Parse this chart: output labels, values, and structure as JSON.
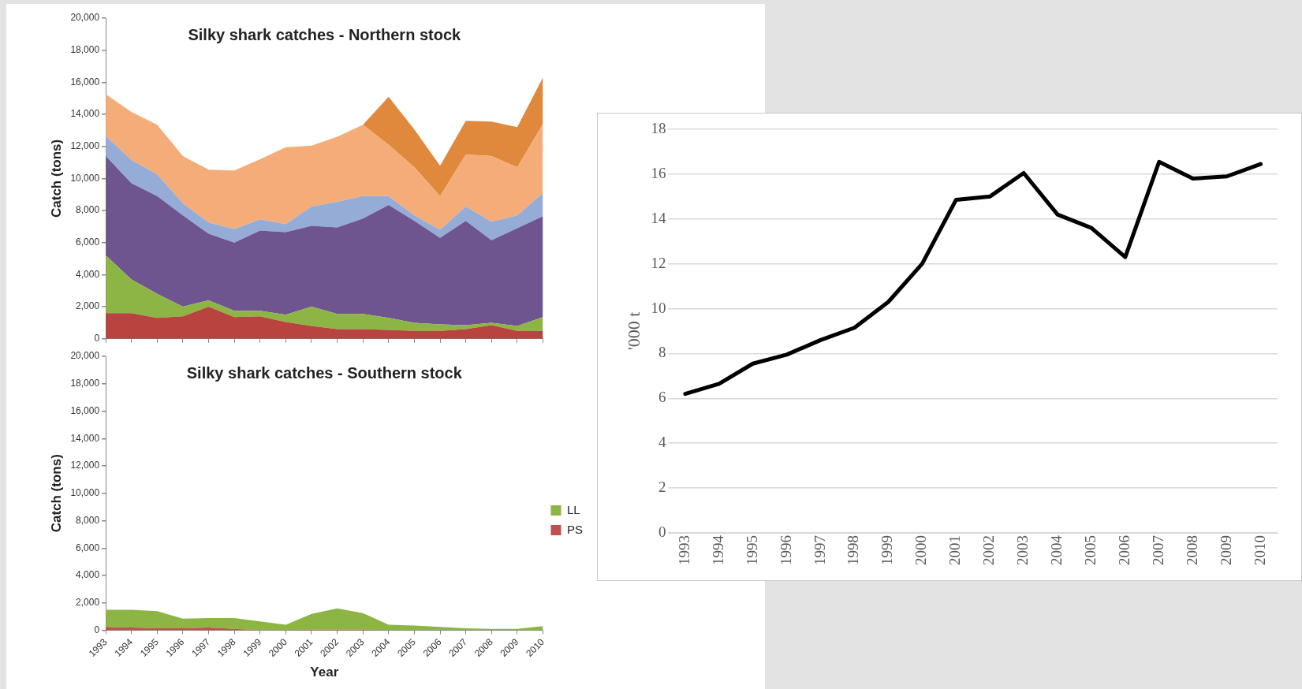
{
  "chart_data": [
    {
      "type": "area",
      "title": "Silky shark catches - Northern stock",
      "ylabel": "Catch (tons)",
      "stacked": true,
      "grid": false,
      "tick_labels": "y",
      "categories": [
        "1993",
        "1994",
        "1995",
        "1996",
        "1997",
        "1998",
        "1999",
        "2000",
        "2001",
        "2002",
        "2003",
        "2004",
        "2005",
        "2006",
        "2007",
        "2008",
        "2009",
        "2010"
      ],
      "ylim": [
        0,
        20000
      ],
      "yticks": [
        {
          "value": 0,
          "label": "0"
        },
        {
          "value": 2000,
          "label": "2,000"
        },
        {
          "value": 4000,
          "label": "4,000"
        },
        {
          "value": 6000,
          "label": "6,000"
        },
        {
          "value": 8000,
          "label": "8,000"
        },
        {
          "value": 10000,
          "label": "10,000"
        },
        {
          "value": 12000,
          "label": "12,000"
        },
        {
          "value": 14000,
          "label": "14,000"
        },
        {
          "value": 16000,
          "label": "16,000"
        },
        {
          "value": 18000,
          "label": "18,000"
        },
        {
          "value": 20000,
          "label": "20,000"
        }
      ],
      "series": [
        {
          "color": "#b8433f",
          "values": [
            1600,
            1600,
            1300,
            1400,
            2000,
            1350,
            1400,
            1050,
            800,
            600,
            600,
            550,
            500,
            500,
            600,
            850,
            500,
            500
          ]
        },
        {
          "color": "#8db543",
          "values": [
            3600,
            2100,
            1500,
            600,
            400,
            400,
            350,
            450,
            1200,
            950,
            950,
            750,
            500,
            400,
            250,
            150,
            300,
            850
          ]
        },
        {
          "color": "#6f5590",
          "values": [
            6200,
            6000,
            6100,
            5700,
            4150,
            4250,
            5000,
            5150,
            5050,
            5400,
            5950,
            7050,
            6350,
            5400,
            6500,
            5150,
            6100,
            6300
          ]
        },
        {
          "color": "#95acd6",
          "values": [
            1250,
            1450,
            1350,
            750,
            700,
            850,
            700,
            500,
            1200,
            1600,
            1400,
            550,
            350,
            500,
            900,
            1150,
            800,
            1450
          ]
        },
        {
          "color": "#f4ad78",
          "values": [
            2600,
            3000,
            3100,
            2950,
            3300,
            3650,
            3750,
            4800,
            3800,
            4050,
            4450,
            3200,
            3000,
            2100,
            3250,
            4100,
            3000,
            4300
          ]
        },
        {
          "color": "#e0893c",
          "values": [
            null,
            null,
            null,
            null,
            null,
            null,
            null,
            null,
            null,
            null,
            0,
            3000,
            2350,
            1900,
            2100,
            2150,
            2500,
            2900
          ]
        }
      ]
    },
    {
      "type": "area",
      "title": "Silky shark catches - Southern stock",
      "xlabel": "Year",
      "ylabel": "Catch (tons)",
      "stacked": true,
      "grid": false,
      "legend": "right",
      "categories": [
        "1993",
        "1994",
        "1995",
        "1996",
        "1997",
        "1998",
        "1999",
        "2000",
        "2001",
        "2002",
        "2003",
        "2004",
        "2005",
        "2006",
        "2007",
        "2008",
        "2009",
        "2010"
      ],
      "ylim": [
        0,
        20000
      ],
      "yticks": [
        {
          "value": 0,
          "label": "0"
        },
        {
          "value": 2000,
          "label": "2,000"
        },
        {
          "value": 4000,
          "label": "4,000"
        },
        {
          "value": 6000,
          "label": "6,000"
        },
        {
          "value": 8000,
          "label": "8,000"
        },
        {
          "value": 10000,
          "label": "10,000"
        },
        {
          "value": 12000,
          "label": "12,000"
        },
        {
          "value": 14000,
          "label": "14,000"
        },
        {
          "value": 16000,
          "label": "16,000"
        },
        {
          "value": 18000,
          "label": "18,000"
        },
        {
          "value": 20000,
          "label": "20,000"
        }
      ],
      "series": [
        {
          "name": "PS",
          "color": "#c0504d",
          "values": [
            250,
            200,
            150,
            150,
            200,
            100,
            0,
            0,
            50,
            50,
            50,
            0,
            0,
            0,
            0,
            0,
            0,
            0
          ]
        },
        {
          "name": "LL",
          "color": "#8db543",
          "values": [
            1250,
            1300,
            1250,
            700,
            700,
            800,
            650,
            400,
            1150,
            1550,
            1200,
            400,
            350,
            250,
            150,
            100,
            100,
            300
          ]
        }
      ]
    },
    {
      "type": "line",
      "ylabel": "'000 t",
      "grid": "y",
      "categories": [
        "1993",
        "1994",
        "1995",
        "1996",
        "1997",
        "1998",
        "1999",
        "2000",
        "2001",
        "2002",
        "2003",
        "2004",
        "2005",
        "2006",
        "2007",
        "2008",
        "2009",
        "2010"
      ],
      "ylim": [
        0,
        18
      ],
      "yticks": [
        0,
        2,
        4,
        6,
        8,
        10,
        12,
        14,
        16,
        18
      ],
      "series": [
        {
          "color": "#000000",
          "values": [
            6.2,
            6.65,
            7.55,
            7.95,
            8.6,
            9.15,
            10.3,
            12.0,
            14.85,
            15.0,
            16.05,
            14.2,
            13.6,
            12.3,
            16.55,
            15.8,
            15.9,
            16.45
          ]
        }
      ]
    }
  ]
}
